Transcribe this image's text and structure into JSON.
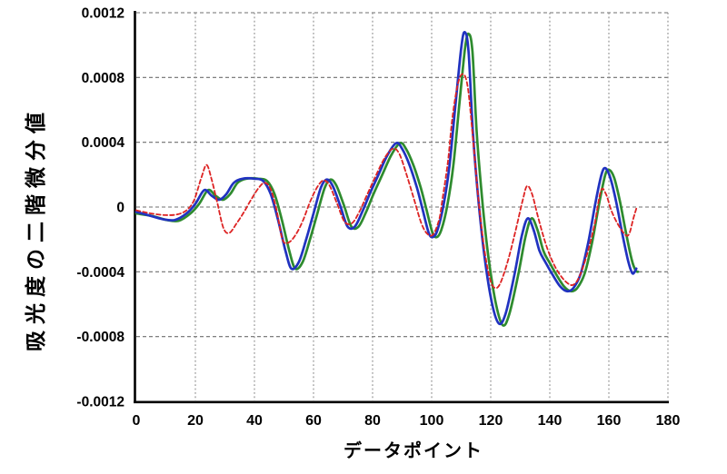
{
  "chart_data": {
    "type": "line",
    "title": "",
    "xlabel": "データポイント",
    "ylabel": "吸光度の二階微分値",
    "xlim": [
      0,
      180
    ],
    "ylim": [
      -0.0012,
      0.0012
    ],
    "grid": true,
    "legend_position": "none",
    "background": "#ffffff",
    "colors": {
      "axis": "#000000",
      "grid_h": "#6f6f6f",
      "grid_v": "#8a8a8a",
      "tick_text": "#000000"
    },
    "x_ticks": [
      {
        "value": 0,
        "label": "0"
      },
      {
        "value": 20,
        "label": "20"
      },
      {
        "value": 40,
        "label": "40"
      },
      {
        "value": 60,
        "label": "60"
      },
      {
        "value": 80,
        "label": "80"
      },
      {
        "value": 100,
        "label": "100"
      },
      {
        "value": 120,
        "label": "120"
      },
      {
        "value": 140,
        "label": "140"
      },
      {
        "value": 160,
        "label": "160"
      },
      {
        "value": 180,
        "label": "180"
      }
    ],
    "y_ticks": [
      {
        "value": 0.0012,
        "label": "0.0012"
      },
      {
        "value": 0.0008,
        "label": "0.0008"
      },
      {
        "value": 0.0004,
        "label": "0.0004"
      },
      {
        "value": 0,
        "label": "0"
      },
      {
        "value": -0.0004,
        "label": "-0.0004"
      },
      {
        "value": -0.0008,
        "label": "-0.0008"
      },
      {
        "value": -0.0012,
        "label": "-0.0012"
      }
    ],
    "series": [
      {
        "name": "series-green",
        "color": "#2e8b2e",
        "style": "solid",
        "width": 2.7,
        "points": [
          [
            0,
            -4e-05
          ],
          [
            5.3,
            -5.5e-05
          ],
          [
            10.3,
            -8e-05
          ],
          [
            14.3,
            -8.5e-05
          ],
          [
            18.3,
            -4e-05
          ],
          [
            21.3,
            2e-05
          ],
          [
            24.3,
            0.000105
          ],
          [
            26.8,
            7e-05
          ],
          [
            29.3,
            4.5e-05
          ],
          [
            31.8,
            8e-05
          ],
          [
            34.3,
            0.00015
          ],
          [
            37.3,
            0.000175
          ],
          [
            41.3,
            0.000175
          ],
          [
            44.3,
            0.00016
          ],
          [
            46.8,
            8e-05
          ],
          [
            49.3,
            -8e-05
          ],
          [
            51.8,
            -0.00027
          ],
          [
            53.8,
            -0.00038
          ],
          [
            56.3,
            -0.00034
          ],
          [
            58.8,
            -0.0002
          ],
          [
            61.3,
            -4e-05
          ],
          [
            63.8,
            0.00012
          ],
          [
            65.8,
            0.00017
          ],
          [
            67.8,
            0.00013
          ],
          [
            70.3,
            1e-05
          ],
          [
            72.8,
            -0.00012
          ],
          [
            75.3,
            -0.00012
          ],
          [
            77.8,
            -3e-05
          ],
          [
            80.3,
            8e-05
          ],
          [
            83.3,
            0.0002
          ],
          [
            86.3,
            0.00032
          ],
          [
            89.3,
            0.000395
          ],
          [
            91.3,
            0.00036
          ],
          [
            93.8,
            0.00026
          ],
          [
            96.3,
            0.00012
          ],
          [
            98.3,
            -2e-05
          ],
          [
            100.3,
            -0.00016
          ],
          [
            101.8,
            -0.000185
          ],
          [
            103.3,
            -0.00014
          ],
          [
            105.3,
            1e-05
          ],
          [
            107.3,
            0.00025
          ],
          [
            109.3,
            0.00062
          ],
          [
            111.3,
            0.00098
          ],
          [
            112.5,
            0.00107
          ],
          [
            113.8,
            0.00096
          ],
          [
            115.3,
            0.00045
          ],
          [
            117.3,
            1e-05
          ],
          [
            119.3,
            -0.00032
          ],
          [
            121.8,
            -0.0006
          ],
          [
            124.1,
            -0.00073
          ],
          [
            126.3,
            -0.00066
          ],
          [
            129.3,
            -0.00042
          ],
          [
            131.8,
            -0.00018
          ],
          [
            133.8,
            -7e-05
          ],
          [
            135.8,
            -0.00014
          ],
          [
            137.8,
            -0.00027
          ],
          [
            139.8,
            -0.00034
          ],
          [
            142.3,
            -0.00042
          ],
          [
            144.8,
            -0.00049
          ],
          [
            147.1,
            -0.00052
          ],
          [
            149.3,
            -0.0005
          ],
          [
            151.8,
            -0.00041
          ],
          [
            154.3,
            -0.00022
          ],
          [
            156.8,
            3e-05
          ],
          [
            158.8,
            0.0002
          ],
          [
            160.1,
            0.00023
          ],
          [
            161.8,
            0.00018
          ],
          [
            163.8,
            3e-05
          ],
          [
            165.8,
            -0.00016
          ],
          [
            167.8,
            -0.00033
          ],
          [
            169,
            -0.00039
          ],
          [
            169.8,
            -0.0004
          ]
        ]
      },
      {
        "name": "series-blue",
        "color": "#2032c0",
        "style": "solid",
        "width": 2.7,
        "points": [
          [
            0,
            -3e-05
          ],
          [
            4,
            -5e-05
          ],
          [
            9,
            -7.5e-05
          ],
          [
            13,
            -8e-05
          ],
          [
            17,
            -4e-05
          ],
          [
            20,
            2e-05
          ],
          [
            23,
            0.000105
          ],
          [
            25.5,
            7e-05
          ],
          [
            28,
            4.5e-05
          ],
          [
            30.5,
            8e-05
          ],
          [
            33,
            0.00015
          ],
          [
            36,
            0.000175
          ],
          [
            40,
            0.000175
          ],
          [
            43,
            0.00016
          ],
          [
            45.5,
            8e-05
          ],
          [
            48,
            -8e-05
          ],
          [
            50.5,
            -0.00027
          ],
          [
            52.5,
            -0.00038
          ],
          [
            55,
            -0.00034
          ],
          [
            57.5,
            -0.0002
          ],
          [
            60,
            -4e-05
          ],
          [
            62.5,
            0.00012
          ],
          [
            64.5,
            0.00017
          ],
          [
            66.5,
            0.00013
          ],
          [
            69,
            1e-05
          ],
          [
            71.5,
            -0.00012
          ],
          [
            74,
            -0.00012
          ],
          [
            76.5,
            -3e-05
          ],
          [
            79,
            8e-05
          ],
          [
            82,
            0.0002
          ],
          [
            85,
            0.00032
          ],
          [
            88,
            0.000395
          ],
          [
            90,
            0.00036
          ],
          [
            92.5,
            0.00026
          ],
          [
            95,
            0.00012
          ],
          [
            97,
            -2e-05
          ],
          [
            99,
            -0.00016
          ],
          [
            100.5,
            -0.000185
          ],
          [
            102,
            -0.00014
          ],
          [
            104,
            1e-05
          ],
          [
            106,
            0.00025
          ],
          [
            108,
            0.00062
          ],
          [
            110,
            0.00098
          ],
          [
            111.2,
            0.00108
          ],
          [
            112.5,
            0.00096
          ],
          [
            114,
            0.00045
          ],
          [
            116,
            1e-05
          ],
          [
            118,
            -0.00032
          ],
          [
            120.5,
            -0.0006
          ],
          [
            122.8,
            -0.00072
          ],
          [
            125,
            -0.00066
          ],
          [
            128,
            -0.00042
          ],
          [
            130.5,
            -0.00018
          ],
          [
            132.5,
            -7e-05
          ],
          [
            134.5,
            -0.00014
          ],
          [
            136.5,
            -0.00027
          ],
          [
            138.5,
            -0.00034
          ],
          [
            141,
            -0.00042
          ],
          [
            143.5,
            -0.00049
          ],
          [
            145.8,
            -0.00052
          ],
          [
            148,
            -0.0005
          ],
          [
            150.5,
            -0.00041
          ],
          [
            153,
            -0.00022
          ],
          [
            155.5,
            3e-05
          ],
          [
            157.5,
            0.0002
          ],
          [
            158.8,
            0.00024
          ],
          [
            160.5,
            0.00018
          ],
          [
            162.5,
            3e-05
          ],
          [
            164.5,
            -0.00016
          ],
          [
            166.5,
            -0.00033
          ],
          [
            168,
            -0.00041
          ],
          [
            169.3,
            -0.00038
          ]
        ]
      },
      {
        "name": "series-red",
        "color": "#dd2323",
        "style": "dashed",
        "dash": "4.5 3",
        "width": 1.8,
        "points": [
          [
            0,
            -2e-05
          ],
          [
            5,
            -4e-05
          ],
          [
            10,
            -5e-05
          ],
          [
            14,
            -4.5e-05
          ],
          [
            17,
            -2e-05
          ],
          [
            19.5,
            4e-05
          ],
          [
            22,
            0.00018
          ],
          [
            23.8,
            0.00026
          ],
          [
            25.5,
            0.00017
          ],
          [
            27.5,
            2e-05
          ],
          [
            29.5,
            -0.00013
          ],
          [
            31.5,
            -0.00016
          ],
          [
            34,
            -0.0001
          ],
          [
            36.5,
            -3e-05
          ],
          [
            39,
            5e-05
          ],
          [
            41.5,
            0.00012
          ],
          [
            43.5,
            0.00015
          ],
          [
            45.5,
            0.00011
          ],
          [
            47.5,
            -2e-05
          ],
          [
            49.5,
            -0.0002
          ],
          [
            51.5,
            -0.00022
          ],
          [
            54,
            -0.00017
          ],
          [
            56.5,
            -8e-05
          ],
          [
            59,
            4e-05
          ],
          [
            61.5,
            0.00013
          ],
          [
            63.5,
            0.000165
          ],
          [
            65.5,
            0.00013
          ],
          [
            68,
            2e-05
          ],
          [
            70.5,
            -9e-05
          ],
          [
            73,
            -0.0001
          ],
          [
            75.5,
            -3e-05
          ],
          [
            78,
            7e-05
          ],
          [
            81,
            0.00019
          ],
          [
            84,
            0.0003
          ],
          [
            86.8,
            0.00036
          ],
          [
            89,
            0.00033
          ],
          [
            91.5,
            0.0002
          ],
          [
            94,
            5e-05
          ],
          [
            96.5,
            -0.0001
          ],
          [
            98.5,
            -0.000165
          ],
          [
            100.5,
            -0.00017
          ],
          [
            102.5,
            -8e-05
          ],
          [
            103.5,
            3e-05
          ],
          [
            105.5,
            0.00028
          ],
          [
            107,
            0.00055
          ],
          [
            109,
            0.00077
          ],
          [
            110.8,
            0.00082
          ],
          [
            112.3,
            0.00073
          ],
          [
            114,
            0.00042
          ],
          [
            116,
            2e-05
          ],
          [
            118,
            -0.00028
          ],
          [
            120,
            -0.00046
          ],
          [
            121.8,
            -0.0005
          ],
          [
            123.5,
            -0.00046
          ],
          [
            126,
            -0.00032
          ],
          [
            128.5,
            -0.00014
          ],
          [
            130.8,
            4e-05
          ],
          [
            132.3,
            0.00013
          ],
          [
            134,
            8e-05
          ],
          [
            136,
            -6e-05
          ],
          [
            138.5,
            -0.00022
          ],
          [
            141,
            -0.00034
          ],
          [
            143.5,
            -0.00042
          ],
          [
            146,
            -0.00047
          ],
          [
            148,
            -0.00048
          ],
          [
            150,
            -0.00043
          ],
          [
            152.5,
            -0.0003
          ],
          [
            155,
            -0.00012
          ],
          [
            157.3,
            0.0001
          ],
          [
            159,
            8e-05
          ],
          [
            161,
            -3e-05
          ],
          [
            163.5,
            -0.00012
          ],
          [
            165.8,
            -0.000175
          ],
          [
            167,
            -0.00016
          ],
          [
            168.3,
            -7e-05
          ],
          [
            169.3,
            -1e-05
          ]
        ]
      }
    ]
  }
}
